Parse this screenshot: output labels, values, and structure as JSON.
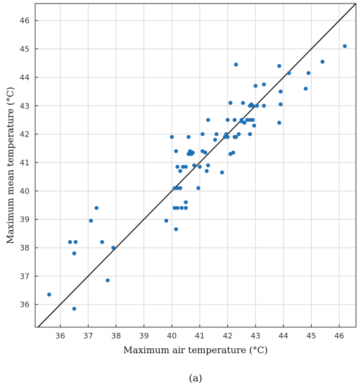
{
  "chart_data": {
    "type": "scatter",
    "title": "",
    "panel_label": "(a)",
    "xlabel": "Maximum air temperature (°C)",
    "ylabel": "Maximum mean temperature (°C)",
    "xlim": [
      35.1,
      46.6
    ],
    "ylim": [
      35.2,
      46.6
    ],
    "xticks": [
      36,
      37,
      38,
      39,
      40,
      41,
      42,
      43,
      44,
      45,
      46
    ],
    "yticks": [
      36,
      37,
      38,
      39,
      40,
      41,
      42,
      43,
      44,
      45,
      46
    ],
    "grid": true,
    "reference_line": "1:1",
    "colors": {
      "points": "#1f6fb4",
      "line": "#000000",
      "grid": "#d9d9d9"
    },
    "points": [
      [
        35.6,
        36.35
      ],
      [
        36.5,
        35.85
      ],
      [
        37.7,
        36.85
      ],
      [
        36.35,
        38.2
      ],
      [
        36.55,
        38.2
      ],
      [
        36.5,
        37.8
      ],
      [
        37.5,
        38.2
      ],
      [
        37.9,
        38.0
      ],
      [
        37.1,
        38.95
      ],
      [
        37.3,
        39.4
      ],
      [
        39.8,
        38.95
      ],
      [
        40.1,
        39.4
      ],
      [
        40.2,
        39.4
      ],
      [
        40.15,
        38.65
      ],
      [
        40.5,
        39.4
      ],
      [
        40.5,
        39.6
      ],
      [
        40.35,
        39.4
      ],
      [
        40.1,
        40.1
      ],
      [
        40.2,
        40.1
      ],
      [
        40.3,
        40.1
      ],
      [
        40.95,
        40.1
      ],
      [
        40.2,
        40.85
      ],
      [
        40.3,
        40.7
      ],
      [
        40.4,
        40.85
      ],
      [
        40.5,
        40.85
      ],
      [
        40.8,
        40.9
      ],
      [
        41.0,
        40.85
      ],
      [
        40.6,
        41.3
      ],
      [
        40.65,
        41.4
      ],
      [
        40.7,
        41.3
      ],
      [
        40.75,
        41.35
      ],
      [
        41.1,
        41.4
      ],
      [
        41.2,
        41.35
      ],
      [
        41.25,
        40.7
      ],
      [
        41.3,
        40.9
      ],
      [
        41.8,
        40.65
      ],
      [
        40.15,
        41.4
      ],
      [
        40.0,
        41.9
      ],
      [
        40.6,
        41.9
      ],
      [
        41.1,
        42.0
      ],
      [
        41.3,
        42.5
      ],
      [
        41.55,
        41.8
      ],
      [
        41.6,
        42.0
      ],
      [
        41.9,
        41.9
      ],
      [
        41.95,
        42.0
      ],
      [
        42.0,
        42.5
      ],
      [
        42.0,
        41.9
      ],
      [
        42.1,
        41.3
      ],
      [
        42.2,
        41.35
      ],
      [
        42.25,
        41.9
      ],
      [
        42.3,
        41.9
      ],
      [
        42.4,
        42.0
      ],
      [
        42.5,
        42.5
      ],
      [
        42.5,
        42.45
      ],
      [
        42.6,
        42.4
      ],
      [
        42.7,
        42.5
      ],
      [
        42.8,
        42.5
      ],
      [
        42.9,
        42.5
      ],
      [
        42.8,
        42.0
      ],
      [
        42.95,
        42.3
      ],
      [
        42.1,
        43.1
      ],
      [
        42.25,
        42.5
      ],
      [
        42.55,
        43.1
      ],
      [
        42.8,
        43.0
      ],
      [
        42.85,
        43.05
      ],
      [
        42.9,
        43.0
      ],
      [
        43.05,
        43.0
      ],
      [
        43.3,
        43.0
      ],
      [
        43.0,
        43.7
      ],
      [
        43.3,
        43.75
      ],
      [
        42.3,
        44.45
      ],
      [
        43.85,
        44.4
      ],
      [
        43.85,
        42.4
      ],
      [
        43.9,
        43.05
      ],
      [
        43.9,
        43.5
      ],
      [
        44.2,
        44.15
      ],
      [
        44.8,
        43.6
      ],
      [
        44.9,
        44.15
      ],
      [
        45.4,
        44.55
      ],
      [
        46.2,
        45.1
      ]
    ]
  }
}
